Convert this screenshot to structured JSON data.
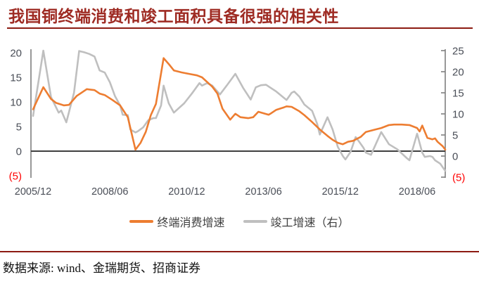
{
  "header": {
    "title": "我国铜终端消费和竣工面积具备很强的相关性"
  },
  "source": {
    "label": "数据来源: wind、金瑞期货、招商证券"
  },
  "colors": {
    "title_red": "#9E2B23",
    "rule_red": "#8C1B12",
    "series_orange": "#ED7D31",
    "series_gray": "#BFBFBF",
    "axis_text": "#4A4E57",
    "negative_red": "#FF0000",
    "zero_line": "#3F3F3F",
    "axis_line": "#7F7F7F"
  },
  "chart_data": {
    "type": "line",
    "title": "我国铜终端消费和竣工面积具备很强的相关性",
    "xlabel": "",
    "ylabel_left": "",
    "ylabel_right": "",
    "grid": false,
    "legend_position": "bottom-center",
    "x_unit": "months since 2005/12",
    "x_ticks": [
      {
        "m": 0,
        "label": "2005/12"
      },
      {
        "m": 30,
        "label": "2008/06"
      },
      {
        "m": 60,
        "label": "2010/12"
      },
      {
        "m": 90,
        "label": "2013/06"
      },
      {
        "m": 120,
        "label": "2015/12"
      },
      {
        "m": 150,
        "label": "2018/06"
      }
    ],
    "left_axis": {
      "range": [
        -5,
        20
      ],
      "ticks": [
        {
          "v": 20,
          "label": "20"
        },
        {
          "v": 15,
          "label": "15"
        },
        {
          "v": 10,
          "label": "10"
        },
        {
          "v": 5,
          "label": "5"
        },
        {
          "v": 0,
          "label": "0"
        },
        {
          "v": -5,
          "label": "(5)",
          "negative": true
        }
      ]
    },
    "right_axis": {
      "range": [
        -5,
        25
      ],
      "ticks": [
        {
          "v": 25,
          "label": "25"
        },
        {
          "v": 20,
          "label": "20"
        },
        {
          "v": 15,
          "label": "15"
        },
        {
          "v": 10,
          "label": "10"
        },
        {
          "v": 5,
          "label": "5"
        },
        {
          "v": 0,
          "label": "0"
        },
        {
          "v": -5,
          "label": "(5)",
          "negative": true
        }
      ]
    },
    "series": [
      {
        "id": "terminal-consumption",
        "name": "终端消费增速",
        "axis": "left",
        "color_key": "series_orange",
        "z": 2,
        "points": [
          [
            0,
            8.5
          ],
          [
            4,
            13.0
          ],
          [
            7,
            10.6
          ],
          [
            9,
            9.8
          ],
          [
            12,
            9.3
          ],
          [
            14,
            9.4
          ],
          [
            17,
            11.2
          ],
          [
            19,
            11.9
          ],
          [
            21,
            12.6
          ],
          [
            24,
            12.4
          ],
          [
            26,
            11.7
          ],
          [
            28,
            11.4
          ],
          [
            31,
            10.4
          ],
          [
            34,
            9.3
          ],
          [
            37,
            6.9
          ],
          [
            40,
            0.3
          ],
          [
            42,
            1.7
          ],
          [
            44,
            3.9
          ],
          [
            46,
            7.3
          ],
          [
            48,
            9.6
          ],
          [
            51,
            18.9
          ],
          [
            53,
            17.7
          ],
          [
            55,
            16.4
          ],
          [
            58,
            16.0
          ],
          [
            61,
            15.7
          ],
          [
            64,
            15.4
          ],
          [
            66,
            15.0
          ],
          [
            70,
            13.1
          ],
          [
            72,
            11.7
          ],
          [
            74,
            8.6
          ],
          [
            77,
            6.4
          ],
          [
            79,
            7.6
          ],
          [
            81,
            6.9
          ],
          [
            84,
            6.7
          ],
          [
            86,
            6.9
          ],
          [
            88,
            8.0
          ],
          [
            90,
            7.7
          ],
          [
            92,
            7.4
          ],
          [
            93,
            7.7
          ],
          [
            95,
            8.4
          ],
          [
            98,
            8.9
          ],
          [
            99,
            9.1
          ],
          [
            101,
            9.0
          ],
          [
            104,
            8.1
          ],
          [
            106,
            7.3
          ],
          [
            109,
            5.9
          ],
          [
            112,
            4.4
          ],
          [
            115,
            3.1
          ],
          [
            117,
            2.3
          ],
          [
            119,
            1.7
          ],
          [
            121,
            1.4
          ],
          [
            123,
            1.9
          ],
          [
            125,
            2.1
          ],
          [
            128,
            2.9
          ],
          [
            130,
            3.9
          ],
          [
            133,
            4.3
          ],
          [
            136,
            4.7
          ],
          [
            139,
            5.3
          ],
          [
            141,
            5.4
          ],
          [
            144,
            5.4
          ],
          [
            147,
            5.3
          ],
          [
            150,
            4.7
          ],
          [
            151,
            4.0
          ],
          [
            152,
            5.2
          ],
          [
            154,
            2.7
          ],
          [
            156,
            2.4
          ],
          [
            157,
            2.6
          ],
          [
            158,
            1.9
          ],
          [
            160,
            1.0
          ],
          [
            161,
            0.3
          ]
        ]
      },
      {
        "id": "completion-growth",
        "name": "竣工增速（右）",
        "axis": "right",
        "color_key": "series_gray",
        "z": 1,
        "points": [
          [
            0,
            9.5
          ],
          [
            4,
            25.0
          ],
          [
            7,
            14.0
          ],
          [
            10,
            10.3
          ],
          [
            11,
            10.8
          ],
          [
            13,
            8.0
          ],
          [
            16,
            15.0
          ],
          [
            18,
            24.9
          ],
          [
            20,
            24.6
          ],
          [
            22,
            24.2
          ],
          [
            24,
            23.6
          ],
          [
            26,
            20.3
          ],
          [
            28,
            19.8
          ],
          [
            30,
            17.5
          ],
          [
            32,
            14.2
          ],
          [
            34,
            12.0
          ],
          [
            35,
            9.8
          ],
          [
            37,
            9.7
          ],
          [
            38,
            6.3
          ],
          [
            40,
            5.6
          ],
          [
            41,
            5.9
          ],
          [
            43,
            6.8
          ],
          [
            45,
            8.5
          ],
          [
            47,
            9.0
          ],
          [
            48,
            9.0
          ],
          [
            50,
            12.0
          ],
          [
            51,
            16.7
          ],
          [
            53,
            12.5
          ],
          [
            55,
            10.3
          ],
          [
            59,
            12.5
          ],
          [
            62,
            14.8
          ],
          [
            65,
            17.3
          ],
          [
            66,
            16.7
          ],
          [
            68,
            17.3
          ],
          [
            70,
            16.7
          ],
          [
            73,
            14.6
          ],
          [
            76,
            17.0
          ],
          [
            79,
            19.5
          ],
          [
            82,
            16.2
          ],
          [
            85,
            13.4
          ],
          [
            87,
            16.3
          ],
          [
            89,
            16.8
          ],
          [
            91,
            16.9
          ],
          [
            95,
            15.3
          ],
          [
            98,
            13.8
          ],
          [
            99,
            13.3
          ],
          [
            101,
            15.0
          ],
          [
            102,
            15.3
          ],
          [
            104,
            14.1
          ],
          [
            106,
            12.2
          ],
          [
            109,
            10.7
          ],
          [
            111,
            7.6
          ],
          [
            112,
            5.1
          ],
          [
            115,
            9.2
          ],
          [
            117,
            6.3
          ],
          [
            119,
            2.2
          ],
          [
            121,
            0.0
          ],
          [
            122,
            -0.8
          ],
          [
            124,
            1.0
          ],
          [
            126,
            4.5
          ],
          [
            127,
            3.7
          ],
          [
            129,
            2.0
          ],
          [
            130,
            0.8
          ],
          [
            132,
            0.3
          ],
          [
            136,
            5.7
          ],
          [
            139,
            2.8
          ],
          [
            142,
            1.7
          ],
          [
            143,
            1.2
          ],
          [
            146,
            -0.5
          ],
          [
            147,
            -1.0
          ],
          [
            150,
            5.3
          ],
          [
            152,
            0.8
          ],
          [
            153,
            -0.2
          ],
          [
            155,
            0.0
          ],
          [
            156,
            -0.2
          ],
          [
            157,
            -1.0
          ],
          [
            159,
            -1.8
          ],
          [
            161,
            -3.5
          ]
        ]
      }
    ]
  }
}
